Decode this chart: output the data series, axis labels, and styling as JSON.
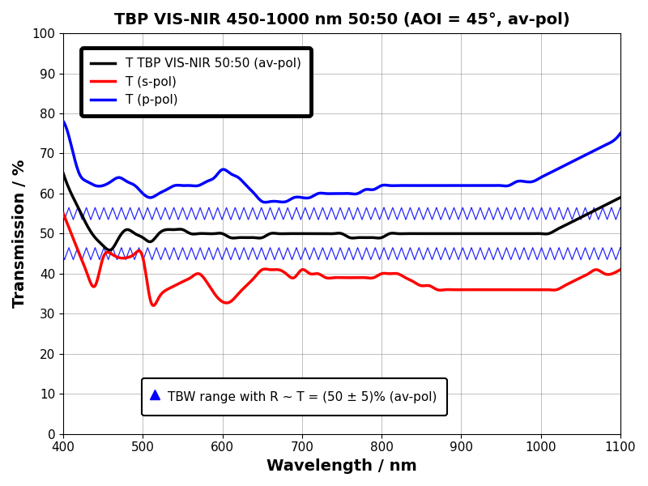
{
  "title": "TBP VIS-NIR 450-1000 nm 50:50 (AOI = 45°, av-pol)",
  "xlabel": "Wavelength / nm",
  "ylabel": "Transmission / %",
  "xlim": [
    400,
    1100
  ],
  "ylim": [
    0,
    100
  ],
  "xticks": [
    400,
    500,
    600,
    700,
    800,
    900,
    1000,
    1100
  ],
  "yticks": [
    0,
    10,
    20,
    30,
    40,
    50,
    60,
    70,
    80,
    90,
    100
  ],
  "legend1_entries": [
    {
      "label": "T TBP VIS-NIR 50:50 (av-pol)",
      "color": "#000000"
    },
    {
      "label": "T (s-pol)",
      "color": "#ff0000"
    },
    {
      "label": "T (p-pol)",
      "color": "#0000ff"
    }
  ],
  "tbw_upper": 55,
  "tbw_lower": 45,
  "tbw_label": "TBW range with R ~ T = (50 ± 5)% (av-pol)",
  "tbw_color": "#0000ff",
  "wavelengths_black": [
    400,
    410,
    420,
    430,
    440,
    450,
    460,
    470,
    480,
    490,
    500,
    510,
    520,
    530,
    540,
    550,
    560,
    570,
    580,
    590,
    600,
    610,
    620,
    630,
    640,
    650,
    660,
    670,
    680,
    690,
    700,
    710,
    720,
    730,
    740,
    750,
    760,
    770,
    780,
    790,
    800,
    810,
    820,
    830,
    840,
    850,
    860,
    870,
    880,
    890,
    900,
    910,
    920,
    930,
    940,
    950,
    960,
    970,
    980,
    990,
    1000,
    1010,
    1020,
    1030,
    1040,
    1050,
    1060,
    1070,
    1080,
    1090,
    1100
  ],
  "T_black": [
    65,
    60,
    56,
    52,
    49,
    47,
    46,
    49,
    51,
    50,
    49,
    48,
    50,
    51,
    51,
    51,
    50,
    50,
    50,
    50,
    50,
    49,
    49,
    49,
    49,
    49,
    50,
    50,
    50,
    50,
    50,
    50,
    50,
    50,
    50,
    50,
    49,
    49,
    49,
    49,
    49,
    50,
    50,
    50,
    50,
    50,
    50,
    50,
    50,
    50,
    50,
    50,
    50,
    50,
    50,
    50,
    50,
    50,
    50,
    50,
    50,
    50,
    51,
    52,
    53,
    54,
    55,
    56,
    57,
    58,
    59
  ],
  "wavelengths_red": [
    400,
    410,
    420,
    430,
    440,
    450,
    460,
    470,
    480,
    490,
    500,
    510,
    520,
    530,
    540,
    550,
    560,
    570,
    580,
    590,
    600,
    610,
    620,
    630,
    640,
    650,
    660,
    670,
    680,
    690,
    700,
    710,
    720,
    730,
    740,
    750,
    760,
    770,
    780,
    790,
    800,
    810,
    820,
    830,
    840,
    850,
    860,
    870,
    880,
    890,
    900,
    910,
    920,
    930,
    940,
    950,
    960,
    970,
    980,
    990,
    1000,
    1010,
    1020,
    1030,
    1040,
    1050,
    1060,
    1070,
    1080,
    1090,
    1100
  ],
  "T_red": [
    55,
    50,
    45,
    40,
    37,
    44,
    45,
    44,
    44,
    45,
    44,
    33,
    34,
    36,
    37,
    38,
    39,
    40,
    38,
    35,
    33,
    33,
    35,
    37,
    39,
    41,
    41,
    41,
    40,
    39,
    41,
    40,
    40,
    39,
    39,
    39,
    39,
    39,
    39,
    39,
    40,
    40,
    40,
    39,
    38,
    37,
    37,
    36,
    36,
    36,
    36,
    36,
    36,
    36,
    36,
    36,
    36,
    36,
    36,
    36,
    36,
    36,
    36,
    37,
    38,
    39,
    40,
    41,
    40,
    40,
    41
  ],
  "wavelengths_blue": [
    400,
    410,
    420,
    430,
    440,
    450,
    460,
    470,
    480,
    490,
    500,
    510,
    520,
    530,
    540,
    550,
    560,
    570,
    580,
    590,
    600,
    610,
    620,
    630,
    640,
    650,
    660,
    670,
    680,
    690,
    700,
    710,
    720,
    730,
    740,
    750,
    760,
    770,
    780,
    790,
    800,
    810,
    820,
    830,
    840,
    850,
    860,
    870,
    880,
    890,
    900,
    910,
    920,
    930,
    940,
    950,
    960,
    970,
    980,
    990,
    1000,
    1010,
    1020,
    1030,
    1040,
    1050,
    1060,
    1070,
    1080,
    1090,
    1100
  ],
  "T_blue": [
    78,
    72,
    65,
    63,
    62,
    62,
    63,
    64,
    63,
    62,
    60,
    59,
    60,
    61,
    62,
    62,
    62,
    62,
    63,
    64,
    66,
    65,
    64,
    62,
    60,
    58,
    58,
    58,
    58,
    59,
    59,
    59,
    60,
    60,
    60,
    60,
    60,
    60,
    61,
    61,
    62,
    62,
    62,
    62,
    62,
    62,
    62,
    62,
    62,
    62,
    62,
    62,
    62,
    62,
    62,
    62,
    62,
    63,
    63,
    63,
    64,
    65,
    66,
    67,
    68,
    69,
    70,
    71,
    72,
    73,
    75
  ]
}
